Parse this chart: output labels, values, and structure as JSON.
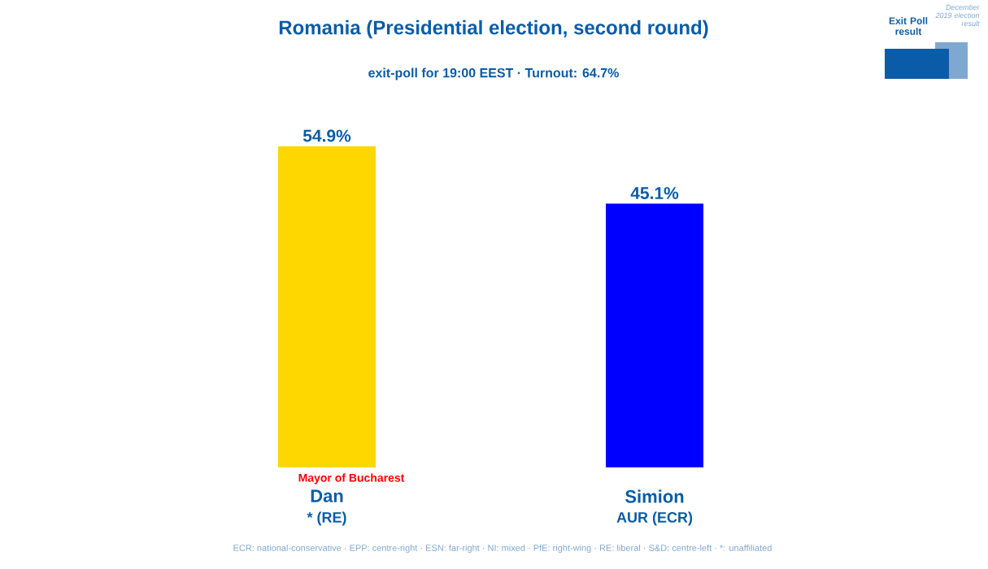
{
  "chart_data": {
    "type": "bar",
    "title": "Romania (Presidential election, second round)",
    "subtitle": "exit-poll for 19:00 EEST · Turnout: 64.7%",
    "categories": [
      "Dan",
      "Simion"
    ],
    "values": [
      54.9,
      45.1
    ],
    "colors": [
      "#ffd700",
      "#0000ff"
    ],
    "value_labels": [
      "54.9%",
      "45.1%"
    ],
    "annotations": [
      "Mayor of Bucharest",
      "* (RE)",
      "AUR (ECR)",
      "Exit Poll result",
      "December 2019 election result",
      "ECR: national-conservative · EPP: centre-right · ESN: far-right · NI: mixed · PfE: right-wing · RE: liberal · S&D: centre-left · *: unaffiliated"
    ]
  }
}
